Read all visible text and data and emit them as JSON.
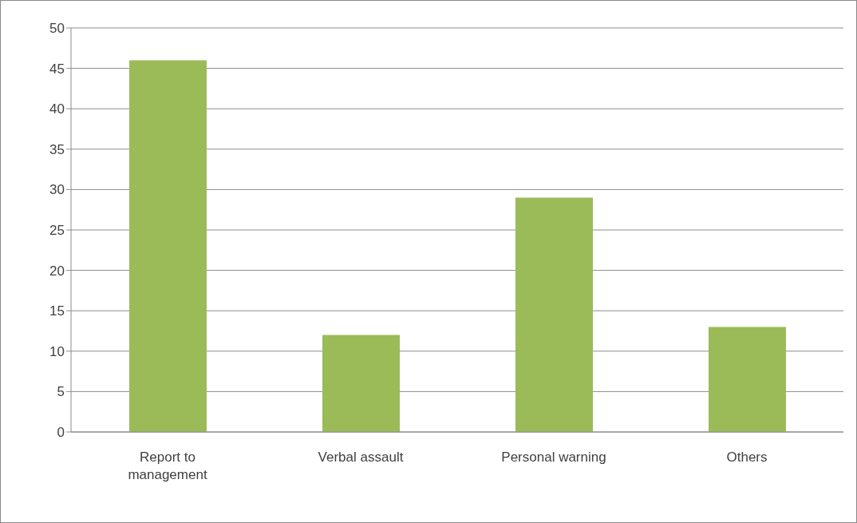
{
  "chart_data": {
    "type": "bar",
    "categories": [
      "Report to management",
      "Verbal assault",
      "Personal warning",
      "Others"
    ],
    "values": [
      46,
      12,
      29,
      13
    ],
    "color": "#9bbb59",
    "ylim": [
      0,
      50
    ],
    "yticks": [
      0,
      5,
      10,
      15,
      20,
      25,
      30,
      35,
      40,
      45,
      50
    ],
    "grid": "y",
    "legend": false
  }
}
